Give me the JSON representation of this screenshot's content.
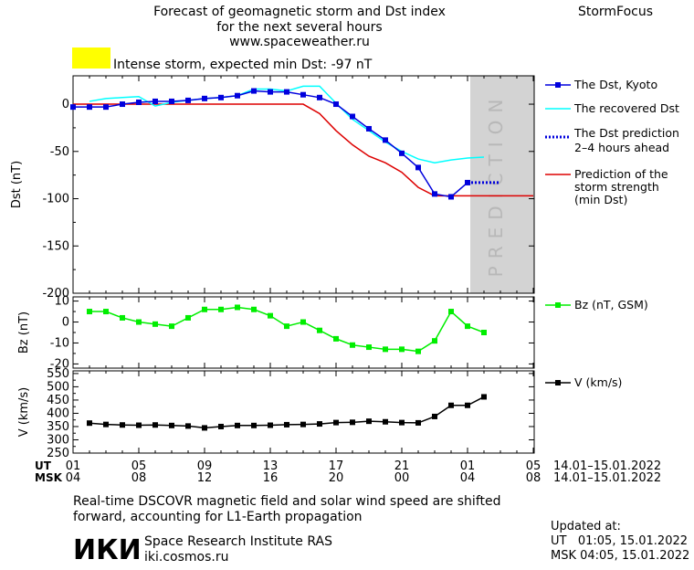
{
  "header": {
    "title_line1": "Forecast of geomagnetic storm and Dst index",
    "title_line2": "for the next several hours",
    "website": "www.spaceweather.ru",
    "brand": "StormFocus"
  },
  "storm_banner": {
    "text": "Intense storm, expected min Dst: -97 nT",
    "swatch_color": "#ffff00"
  },
  "colors": {
    "dst_kyoto": "#0000dd",
    "recovered": "#00ffff",
    "prediction_dotted": "#0000dd",
    "storm_strength": "#dd0000",
    "bz": "#00ee00",
    "speed": "#000000",
    "prediction_zone": "#d3d3d3"
  },
  "prediction_label": "PREDICTION",
  "x_axis": {
    "ut_label": "UT",
    "msk_label": "MSK",
    "ut_ticks": [
      "01",
      "05",
      "09",
      "13",
      "17",
      "21",
      "01",
      "05"
    ],
    "msk_ticks": [
      "04",
      "08",
      "12",
      "16",
      "20",
      "00",
      "04",
      "08"
    ],
    "ut_range": "14.01–15.01.2022",
    "msk_range": "14.01–15.01.2022"
  },
  "footer": {
    "note_line1": "Real-time DSCOVR magnetic field and solar wind speed are shifted",
    "note_line2": "forward, accounting for L1-Earth propagation",
    "logo": "ИКИ",
    "institute": "Space Research Institute RAS",
    "institute_url": "iki.cosmos.ru",
    "updated_label": "Updated at:",
    "updated_ut": "UT   01:05, 15.01.2022",
    "updated_msk": "MSK 04:05, 15.01.2022"
  },
  "chart_data": [
    {
      "type": "line",
      "ylabel": "Dst (nT)",
      "ylim": [
        -200,
        30
      ],
      "yticks": [
        0,
        -50,
        -100,
        -150,
        -200
      ],
      "xlim": [
        1,
        29
      ],
      "prediction_zone": [
        25,
        29
      ],
      "series": [
        {
          "name": "The Dst, Kyoto",
          "marker": "square",
          "x": [
            1,
            2,
            3,
            4,
            5,
            6,
            7,
            8,
            9,
            10,
            11,
            12,
            13,
            14,
            15,
            16,
            17,
            18,
            19,
            20,
            21,
            22,
            23,
            24,
            25
          ],
          "y": [
            -3,
            -3,
            -3,
            0,
            2,
            3,
            3,
            4,
            6,
            7,
            9,
            14,
            13,
            13,
            10,
            7,
            0,
            -13,
            -26,
            -38,
            -52,
            -67,
            -95,
            -98,
            -83
          ]
        },
        {
          "name": "The recovered Dst",
          "x": [
            2,
            3,
            4,
            5,
            6,
            7,
            8,
            9,
            10,
            11,
            12,
            13,
            14,
            15,
            16,
            17,
            18,
            19,
            20,
            21,
            22,
            23,
            24,
            25,
            26
          ],
          "y": [
            3,
            6,
            7,
            8,
            -2,
            2,
            4,
            6,
            7,
            9,
            16,
            16,
            14,
            19,
            19,
            1,
            -16,
            -28,
            -40,
            -50,
            -58,
            -62,
            -59,
            -57,
            -56
          ]
        },
        {
          "name": "The Dst prediction\n2–4 hours ahead",
          "style": "dotted",
          "x": [
            25,
            26,
            27
          ],
          "y": [
            -83,
            -83,
            -83
          ]
        },
        {
          "name": "Prediction of the\nstorm strength\n(min Dst)",
          "x": [
            1,
            15,
            16,
            17,
            18,
            19,
            20,
            21,
            22,
            23,
            29
          ],
          "y": [
            0,
            0,
            -10,
            -28,
            -43,
            -55,
            -62,
            -72,
            -88,
            -97,
            -97
          ]
        }
      ]
    },
    {
      "type": "line",
      "ylabel": "Bz (nT)",
      "ylim": [
        -22,
        12
      ],
      "yticks": [
        10,
        0,
        -10,
        -20
      ],
      "series": [
        {
          "name": "Bz (nT, GSM)",
          "marker": "square",
          "x": [
            2,
            3,
            4,
            5,
            6,
            7,
            8,
            9,
            10,
            11,
            12,
            13,
            14,
            15,
            16,
            17,
            18,
            19,
            20,
            21,
            22,
            23,
            24,
            25,
            26
          ],
          "y": [
            5,
            5,
            2,
            0,
            -1,
            -2,
            2,
            6,
            6,
            7,
            6,
            3,
            -2,
            0,
            -4,
            -8,
            -11,
            -12,
            -13,
            -13,
            -14,
            -9,
            5,
            -2,
            -5
          ]
        }
      ]
    },
    {
      "type": "line",
      "ylabel": "V (km/s)",
      "ylim": [
        250,
        560
      ],
      "yticks": [
        550,
        500,
        450,
        400,
        350,
        300,
        250
      ],
      "series": [
        {
          "name": "V (km/s)",
          "marker": "square",
          "x": [
            2,
            3,
            4,
            5,
            6,
            7,
            8,
            9,
            10,
            11,
            12,
            13,
            14,
            15,
            16,
            17,
            18,
            19,
            20,
            21,
            22,
            23,
            24,
            25,
            26
          ],
          "y": [
            363,
            358,
            356,
            355,
            356,
            354,
            352,
            345,
            350,
            354,
            354,
            355,
            357,
            358,
            360,
            365,
            366,
            370,
            368,
            365,
            364,
            388,
            430,
            430,
            462
          ]
        }
      ]
    }
  ]
}
